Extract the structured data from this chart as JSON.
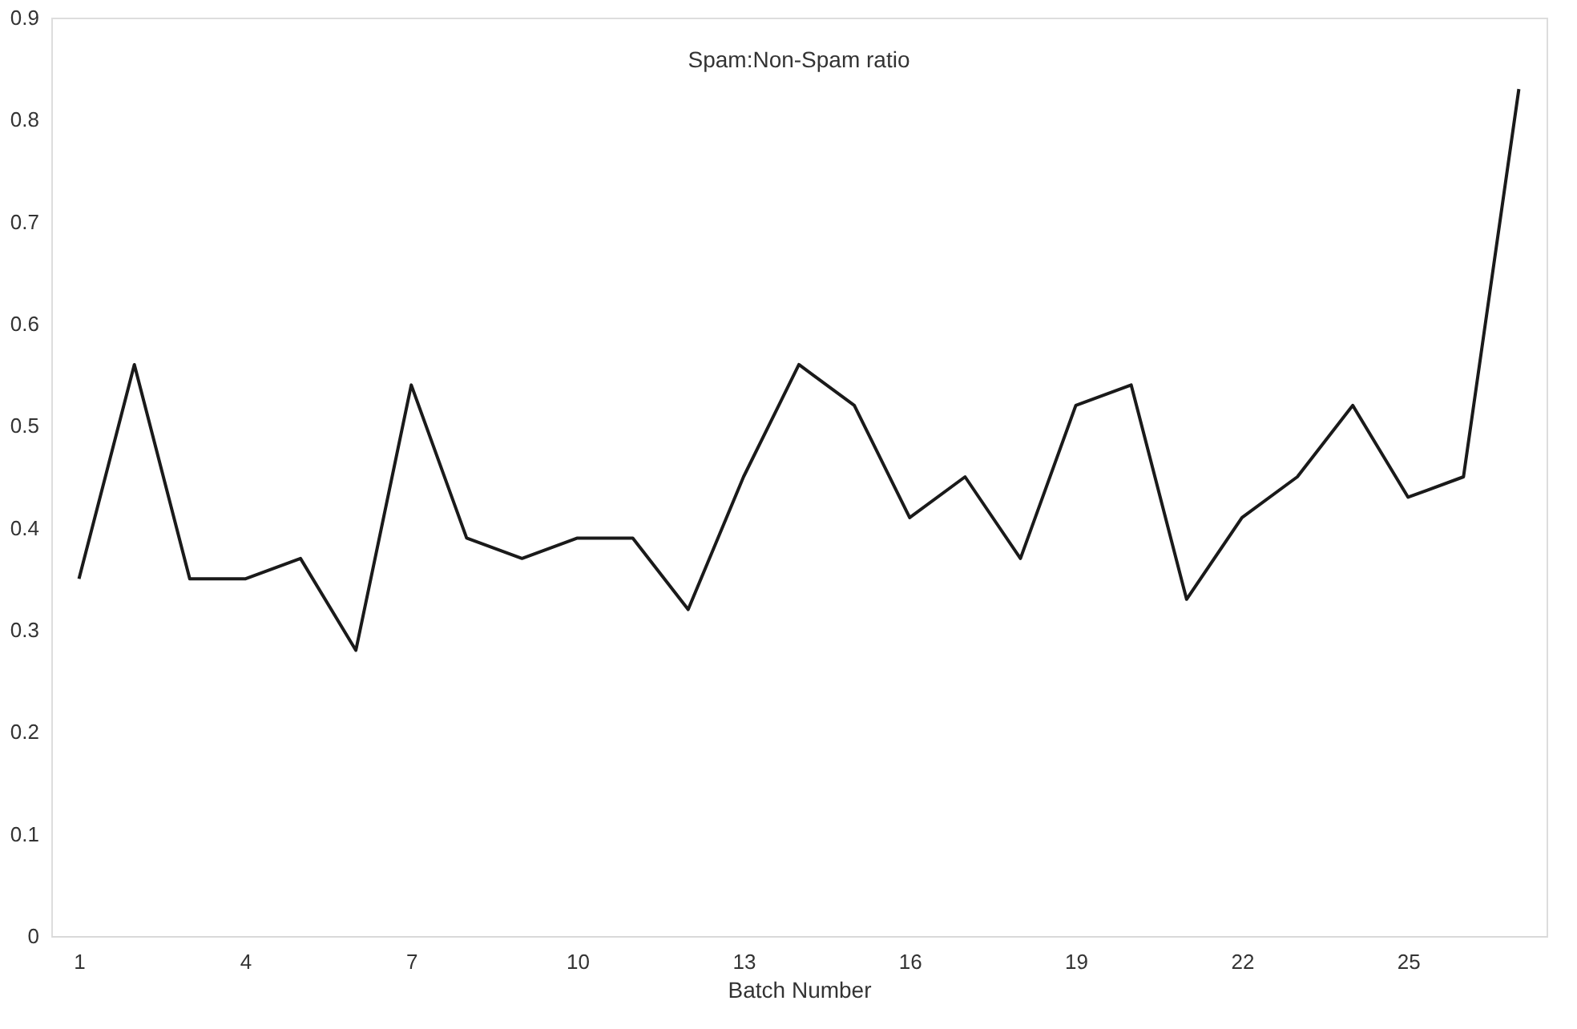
{
  "chart_data": {
    "type": "line",
    "title": "Spam:Non-Spam ratio",
    "xlabel": "Batch Number",
    "categories": [
      "1",
      null,
      null,
      "4",
      null,
      null,
      "7",
      null,
      null,
      "10",
      null,
      null,
      "13",
      null,
      null,
      "16",
      null,
      null,
      "19",
      null,
      null,
      "22",
      null,
      null,
      "25",
      null,
      null
    ],
    "series": [
      {
        "color": "#1a1a1a",
        "values": [
          0.35,
          0.56,
          0.35,
          0.35,
          0.37,
          0.28,
          0.54,
          0.39,
          0.37,
          0.39,
          0.39,
          0.32,
          0.45,
          0.56,
          0.52,
          0.41,
          0.45,
          0.37,
          0.52,
          0.54,
          0.33,
          0.41,
          0.45,
          0.52,
          0.43,
          0.45,
          0.83
        ]
      }
    ],
    "ylim": [
      0,
      0.9
    ],
    "yticks": [
      0,
      0.1,
      0.2,
      0.3,
      0.4,
      0.5,
      0.6,
      0.7,
      0.8,
      0.9
    ],
    "grid": false,
    "marker": "none",
    "line_style": "solid"
  }
}
